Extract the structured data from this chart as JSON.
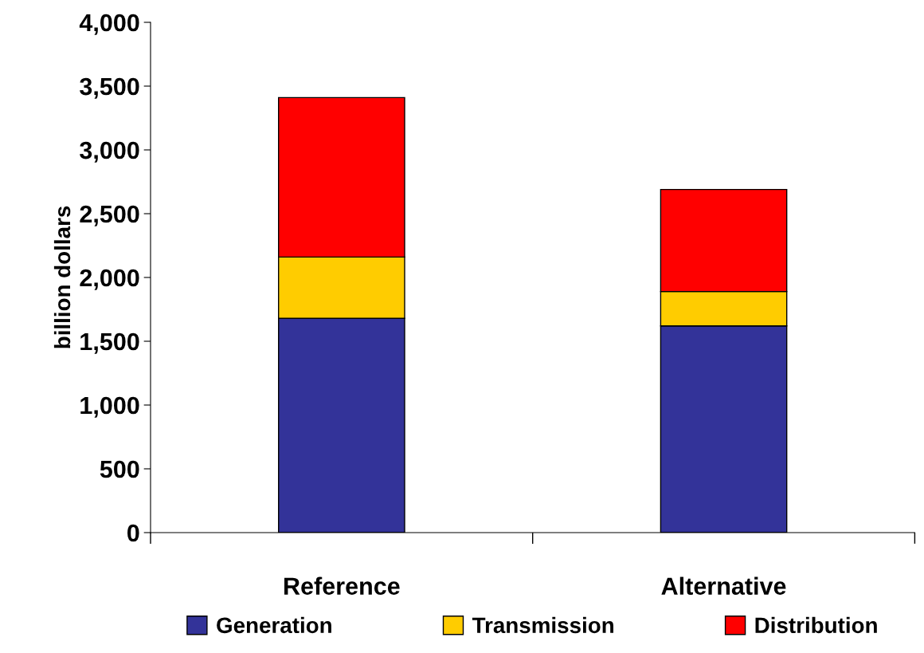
{
  "chart_data": {
    "type": "bar",
    "stacked": true,
    "ylabel": "billion dollars",
    "categories": [
      "Reference",
      "Alternative"
    ],
    "series": [
      {
        "name": "Generation",
        "color": "#333399",
        "values": [
          1680,
          1620
        ]
      },
      {
        "name": "Transmission",
        "color": "#ffcc00",
        "values": [
          480,
          270
        ]
      },
      {
        "name": "Distribution",
        "color": "#ff0000",
        "values": [
          1250,
          800
        ]
      }
    ],
    "ylim": [
      0,
      4000
    ],
    "yticks": [
      0,
      500,
      {
        "value": 1000,
        "label": "1,000"
      },
      {
        "value": 1500,
        "label": "1,500"
      },
      {
        "value": 2000,
        "label": "2,000"
      },
      {
        "value": 2500,
        "label": "2,500"
      },
      {
        "value": 3000,
        "label": "3,000"
      },
      {
        "value": 3500,
        "label": "3,500"
      },
      {
        "value": 4000,
        "label": "4,000"
      }
    ],
    "grid": false,
    "legend": "bottom"
  }
}
